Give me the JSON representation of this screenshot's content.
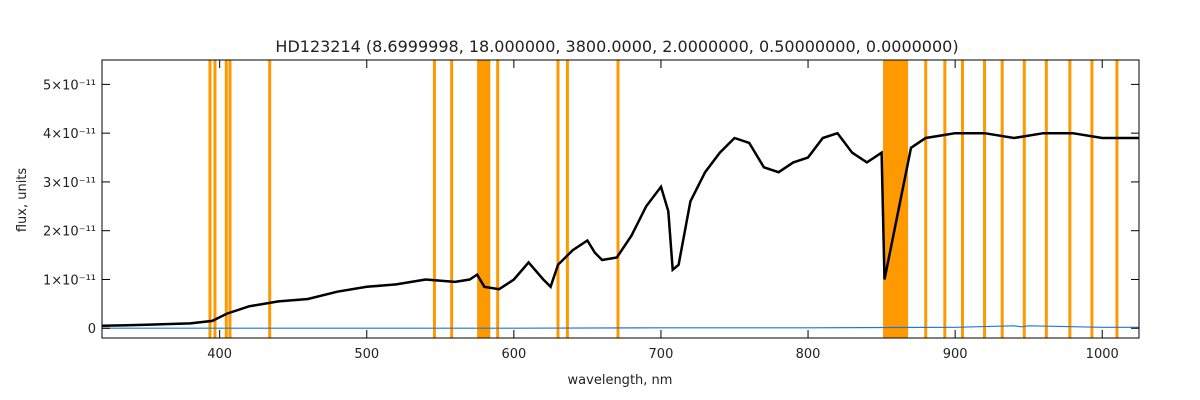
{
  "chart_data": {
    "type": "line",
    "title": "HD123214   (8.6999998, 18.000000, 3800.0000, 2.0000000, 0.50000000, 0.0000000)",
    "xlabel": "wavelength, nm",
    "ylabel": "flux, units",
    "xlim": [
      320,
      1025
    ],
    "ylim": [
      -2e-12,
      5.5e-11
    ],
    "x_ticks": [
      400,
      500,
      600,
      700,
      800,
      900,
      1000
    ],
    "y_ticks": [
      {
        "value": 0,
        "label": "0"
      },
      {
        "value": 1e-11,
        "label": "1×10⁻¹¹"
      },
      {
        "value": 2e-11,
        "label": "2×10⁻¹¹"
      },
      {
        "value": 3e-11,
        "label": "3×10⁻¹¹"
      },
      {
        "value": 4e-11,
        "label": "4×10⁻¹¹"
      },
      {
        "value": 5e-11,
        "label": "5×10⁻¹¹"
      }
    ],
    "colors": {
      "flux": "#000000",
      "error": "#1f77d4",
      "mask": "#ff9900"
    },
    "series": [
      {
        "key": "flux",
        "x": [
          320,
          350,
          380,
          395,
          405,
          420,
          440,
          460,
          480,
          500,
          520,
          540,
          560,
          570,
          575,
          580,
          590,
          600,
          610,
          620,
          625,
          630,
          640,
          650,
          655,
          660,
          670,
          680,
          690,
          700,
          705,
          708,
          712,
          720,
          730,
          740,
          750,
          760,
          770,
          780,
          790,
          800,
          810,
          820,
          830,
          840,
          850,
          852,
          870,
          880,
          890,
          900,
          920,
          940,
          960,
          980,
          1000,
          1025
        ],
        "y": [
          5e-13,
          7e-13,
          1e-12,
          1.5e-12,
          3e-12,
          4.5e-12,
          5.5e-12,
          6e-12,
          7.5e-12,
          8.5e-12,
          9e-12,
          1e-11,
          9.5e-12,
          1e-11,
          1.1e-11,
          8.5e-12,
          8e-12,
          1e-11,
          1.35e-11,
          1e-11,
          8.5e-12,
          1.3e-11,
          1.6e-11,
          1.8e-11,
          1.55e-11,
          1.4e-11,
          1.45e-11,
          1.9e-11,
          2.5e-11,
          2.9e-11,
          2.4e-11,
          1.2e-11,
          1.3e-11,
          2.6e-11,
          3.2e-11,
          3.6e-11,
          3.9e-11,
          3.8e-11,
          3.3e-11,
          3.2e-11,
          3.4e-11,
          3.5e-11,
          3.9e-11,
          4e-11,
          3.6e-11,
          3.4e-11,
          3.6e-11,
          1e-11,
          3.7e-11,
          3.9e-11,
          3.95e-11,
          4e-11,
          4e-11,
          3.9e-11,
          4e-11,
          4e-11,
          3.9e-11,
          3.9e-11
        ]
      },
      {
        "key": "error",
        "x": [
          320,
          400,
          500,
          600,
          700,
          800,
          900,
          940,
          945,
          950,
          1000,
          1025
        ],
        "y": [
          0,
          0,
          0,
          0,
          1e-13,
          1e-13,
          2e-13,
          5e-13,
          3e-13,
          5e-13,
          2e-13,
          2e-13
        ]
      }
    ],
    "masked_lines_nm": [
      393.4,
      396.8,
      404.5,
      407.0,
      434.0,
      546.0,
      557.7,
      589.0,
      630.0,
      636.4,
      670.8,
      880.0,
      893.0,
      905.0,
      920.0,
      932.0,
      947.0,
      962.0,
      978.0,
      993.0,
      1010.0
    ],
    "masked_bands_nm": [
      [
        575,
        584
      ],
      [
        851,
        868
      ]
    ]
  }
}
